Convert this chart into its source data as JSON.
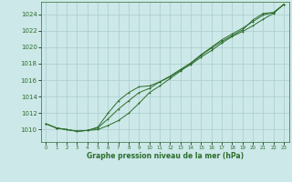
{
  "x": [
    0,
    1,
    2,
    3,
    4,
    5,
    6,
    7,
    8,
    9,
    10,
    11,
    12,
    13,
    14,
    15,
    16,
    17,
    18,
    19,
    20,
    21,
    22,
    23
  ],
  "line1": [
    1010.7,
    1010.2,
    1010.0,
    1009.8,
    1009.9,
    1010.0,
    1010.5,
    1011.1,
    1012.0,
    1013.2,
    1014.5,
    1015.3,
    1016.2,
    1017.1,
    1018.0,
    1019.0,
    1019.9,
    1020.7,
    1021.4,
    1022.1,
    1023.3,
    1024.1,
    1024.2,
    1025.2
  ],
  "line2": [
    1010.7,
    1010.2,
    1010.0,
    1009.8,
    1009.9,
    1010.2,
    1011.3,
    1012.5,
    1013.5,
    1014.5,
    1015.0,
    1015.8,
    1016.5,
    1017.3,
    1018.1,
    1019.1,
    1020.0,
    1020.9,
    1021.6,
    1022.3,
    1023.1,
    1023.9,
    1024.2,
    1025.2
  ],
  "line3": [
    1010.7,
    1010.2,
    1010.0,
    1009.8,
    1009.9,
    1010.3,
    1012.0,
    1013.5,
    1014.5,
    1015.2,
    1015.3,
    1015.8,
    1016.4,
    1017.2,
    1017.9,
    1018.8,
    1019.6,
    1020.5,
    1021.3,
    1021.9,
    1022.6,
    1023.4,
    1024.1,
    1025.2
  ],
  "bg_color": "#cce8e8",
  "line_color": "#2d6e2d",
  "grid_color": "#aacccc",
  "text_color": "#2d6e2d",
  "xlabel": "Graphe pression niveau de la mer (hPa)",
  "ylim": [
    1008.5,
    1025.5
  ],
  "yticks": [
    1010,
    1012,
    1014,
    1016,
    1018,
    1020,
    1022,
    1024
  ],
  "xticks": [
    0,
    1,
    2,
    3,
    4,
    5,
    6,
    7,
    8,
    9,
    10,
    11,
    12,
    13,
    14,
    15,
    16,
    17,
    18,
    19,
    20,
    21,
    22,
    23
  ]
}
